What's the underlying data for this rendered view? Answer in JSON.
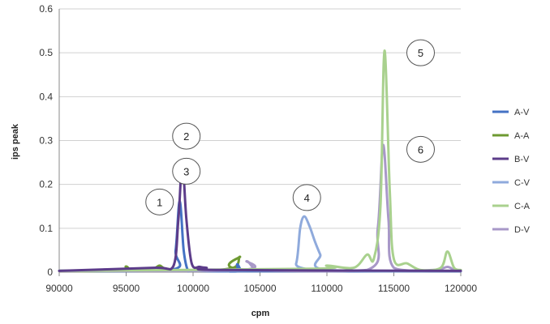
{
  "chart_data": {
    "type": "line",
    "xlabel": "cpm",
    "ylabel": "ips peak",
    "xlim": [
      90000,
      120000
    ],
    "ylim": [
      0,
      0.6
    ],
    "xticks": [
      90000,
      95000,
      100000,
      105000,
      110000,
      115000,
      120000
    ],
    "yticks": [
      0,
      0.1,
      0.2,
      0.3,
      0.4,
      0.5,
      0.6
    ],
    "grid": "horizontal",
    "legend_position": "right",
    "series": [
      {
        "name": "A-V",
        "color": "#4472C4",
        "x": [
          90000,
          98300,
          98700,
          99000,
          99300,
          99600,
          100000,
          103000,
          103300,
          103600,
          104000,
          120000
        ],
        "y": [
          0.003,
          0.005,
          0.05,
          0.162,
          0.05,
          0.005,
          0.003,
          0.003,
          0.018,
          0.003,
          0.002,
          0.002
        ]
      },
      {
        "name": "A-A",
        "color": "#6E9A32",
        "x": [
          90000,
          94500,
          95000,
          95500,
          97000,
          97500,
          98000,
          100000,
          103000,
          103500,
          104000,
          120000
        ],
        "y": [
          0.003,
          0.003,
          0.013,
          0.003,
          0.008,
          0.015,
          0.008,
          0.003,
          0.01,
          0.035,
          0.005,
          0.003
        ]
      },
      {
        "name": "B-V",
        "color": "#5C3C8A",
        "x": [
          90000,
          97000,
          98500,
          98900,
          99200,
          99500,
          99900,
          100500,
          101000,
          102000,
          120000
        ],
        "y": [
          0.003,
          0.01,
          0.012,
          0.12,
          0.248,
          0.12,
          0.02,
          0.012,
          0.01,
          0.005,
          0.003
        ]
      },
      {
        "name": "C-V",
        "color": "#8FAADC",
        "x": [
          90000,
          107000,
          107700,
          108000,
          108300,
          108700,
          109100,
          109500,
          110000,
          120000
        ],
        "y": [
          0.003,
          0.005,
          0.02,
          0.1,
          0.127,
          0.105,
          0.07,
          0.04,
          0.005,
          0.003
        ]
      },
      {
        "name": "C-A",
        "color": "#A9D18E",
        "x": [
          90000,
          109000,
          110000,
          112000,
          113000,
          113500,
          114000,
          114300,
          114700,
          115000,
          116000,
          117000,
          118500,
          119000,
          119500,
          120000
        ],
        "y": [
          0.003,
          0.008,
          0.015,
          0.01,
          0.04,
          0.03,
          0.15,
          0.505,
          0.18,
          0.03,
          0.02,
          0.005,
          0.01,
          0.047,
          0.01,
          0.005
        ]
      },
      {
        "name": "D-V",
        "color": "#A898C8",
        "x": [
          90000,
          103500,
          104000,
          104500,
          105000,
          113000,
          113800,
          114200,
          114600,
          115000,
          118000,
          119000,
          119500,
          120000
        ],
        "y": [
          0.003,
          0.005,
          0.025,
          0.01,
          0.004,
          0.005,
          0.1,
          0.29,
          0.12,
          0.01,
          0.005,
          0.012,
          0.005,
          0.003
        ]
      }
    ],
    "annotations": [
      {
        "label": "1",
        "x": 97500,
        "y": 0.16
      },
      {
        "label": "2",
        "x": 99500,
        "y": 0.31
      },
      {
        "label": "3",
        "x": 99500,
        "y": 0.23
      },
      {
        "label": "4",
        "x": 108500,
        "y": 0.17
      },
      {
        "label": "5",
        "x": 117000,
        "y": 0.5
      },
      {
        "label": "6",
        "x": 117000,
        "y": 0.28
      }
    ]
  }
}
